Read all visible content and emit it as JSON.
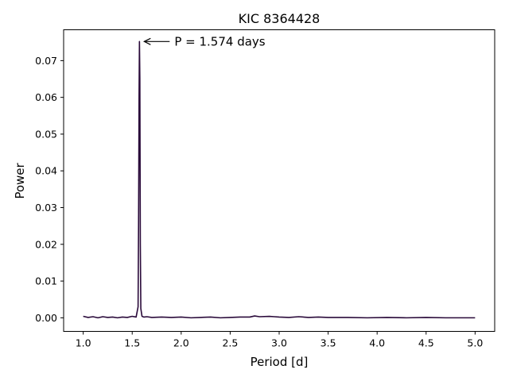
{
  "chart_data": {
    "type": "line",
    "title": "KIC 8364428",
    "xlabel": "Period [d]",
    "ylabel": "Power",
    "xlim": [
      0.8,
      5.2
    ],
    "ylim": [
      -0.0037,
      0.0784
    ],
    "xticks": [
      1.0,
      1.5,
      2.0,
      2.5,
      3.0,
      3.5,
      4.0,
      4.5,
      5.0
    ],
    "xtick_labels": [
      "1.0",
      "1.5",
      "2.0",
      "2.5",
      "3.0",
      "3.5",
      "4.0",
      "4.5",
      "5.0"
    ],
    "yticks": [
      0.0,
      0.01,
      0.02,
      0.03,
      0.04,
      0.05,
      0.06,
      0.07
    ],
    "ytick_labels": [
      "0.00",
      "0.01",
      "0.02",
      "0.03",
      "0.04",
      "0.05",
      "0.06",
      "0.07"
    ],
    "grid": false,
    "line_color": "#2a0a3a",
    "series": [
      {
        "x": [
          1.0,
          1.05,
          1.1,
          1.15,
          1.2,
          1.25,
          1.3,
          1.35,
          1.4,
          1.45,
          1.5,
          1.54,
          1.56,
          1.565,
          1.57,
          1.574,
          1.578,
          1.583,
          1.588,
          1.6,
          1.62,
          1.65,
          1.7,
          1.8,
          1.9,
          2.0,
          2.1,
          2.2,
          2.3,
          2.4,
          2.5,
          2.6,
          2.7,
          2.75,
          2.8,
          2.9,
          2.95,
          3.0,
          3.1,
          3.2,
          3.3,
          3.4,
          3.5,
          3.7,
          3.9,
          4.1,
          4.3,
          4.5,
          4.7,
          4.9,
          5.0
        ],
        "y": [
          0.0004,
          0.0001,
          0.0003,
          0.0,
          0.0003,
          0.0001,
          0.0002,
          0.0,
          0.0002,
          0.0001,
          0.0004,
          0.0002,
          0.003,
          0.025,
          0.06,
          0.0752,
          0.065,
          0.02,
          0.0025,
          0.0004,
          0.0002,
          0.0003,
          0.0001,
          0.0002,
          0.0001,
          0.0002,
          0.0,
          0.0001,
          0.0002,
          0.0,
          0.0001,
          0.0002,
          0.0002,
          0.0005,
          0.0003,
          0.0004,
          0.0003,
          0.0002,
          0.0001,
          0.0003,
          0.0001,
          0.0002,
          0.0001,
          0.0001,
          0.0,
          0.0001,
          0.0,
          0.0001,
          0.0,
          0.0,
          0.0
        ]
      }
    ],
    "annotation": {
      "text": "P = 1.574 days",
      "x": 1.574,
      "y": 0.0752
    }
  }
}
